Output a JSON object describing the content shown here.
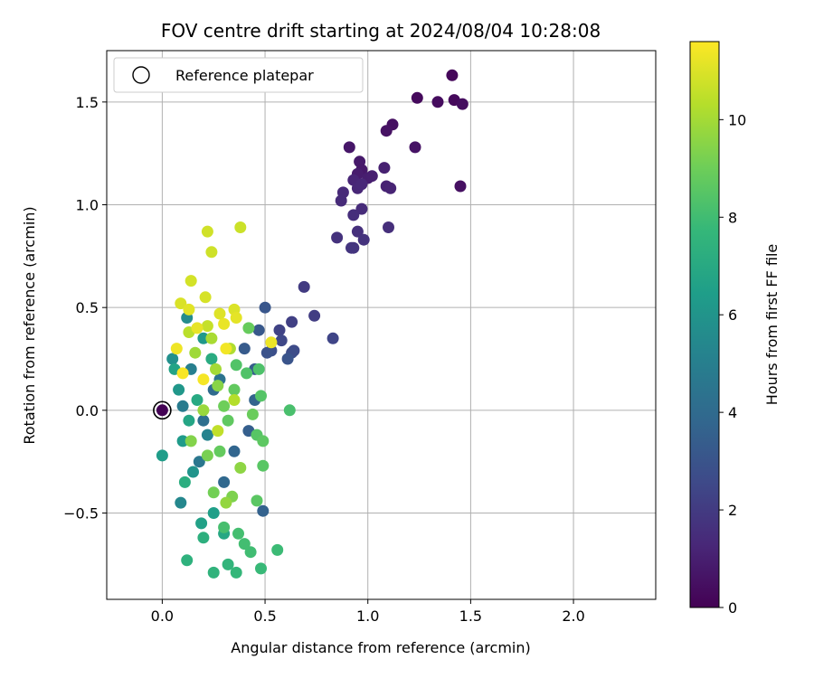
{
  "chart_data": {
    "type": "scatter",
    "title": "FOV centre drift starting at 2024/08/04 10:28:08",
    "xlabel": "Angular distance from reference (arcmin)",
    "ylabel": "Rotation from reference (arcmin)",
    "xlim": [
      -0.27,
      2.4
    ],
    "ylim": [
      -0.92,
      1.75
    ],
    "xticks": [
      0.0,
      0.5,
      1.0,
      1.5,
      2.0
    ],
    "xtick_labels": [
      "0.0",
      "0.5",
      "1.0",
      "1.5",
      "2.0"
    ],
    "yticks": [
      -0.5,
      0.0,
      0.5,
      1.0,
      1.5
    ],
    "ytick_labels": [
      "−0.5",
      "0.0",
      "0.5",
      "1.0",
      "1.5"
    ],
    "grid": true,
    "legend": {
      "placement": "top-left",
      "entries": [
        "Reference platepar"
      ]
    },
    "colorbar": {
      "label": "Hours from first FF file",
      "colormap": "viridis",
      "range": [
        0,
        11.6
      ],
      "ticks": [
        0,
        2,
        4,
        6,
        8,
        10
      ],
      "tick_labels": [
        "0",
        "2",
        "4",
        "6",
        "8",
        "10"
      ],
      "colors": [
        "#440154",
        "#482878",
        "#3e4a89",
        "#31688e",
        "#26828e",
        "#1f9e89",
        "#35b779",
        "#6ece58",
        "#b5de2b",
        "#fde725"
      ]
    },
    "reference": {
      "x": 0.0,
      "y": 0.0
    },
    "series": [
      {
        "points": [
          [
            0.0,
            0.0,
            0.05
          ],
          [
            1.41,
            1.63,
            0.2
          ],
          [
            1.24,
            1.52,
            0.3
          ],
          [
            1.34,
            1.5,
            0.35
          ],
          [
            1.42,
            1.51,
            0.25
          ],
          [
            1.46,
            1.49,
            0.4
          ],
          [
            1.45,
            1.09,
            0.5
          ],
          [
            1.12,
            1.39,
            0.45
          ],
          [
            1.09,
            1.36,
            0.55
          ],
          [
            1.23,
            1.28,
            0.6
          ],
          [
            0.91,
            1.28,
            0.7
          ],
          [
            0.96,
            1.21,
            0.8
          ],
          [
            0.97,
            1.17,
            0.75
          ],
          [
            0.95,
            1.15,
            0.9
          ],
          [
            1.0,
            1.13,
            0.95
          ],
          [
            1.02,
            1.14,
            1.0
          ],
          [
            1.08,
            1.18,
            1.05
          ],
          [
            1.09,
            1.09,
            1.1
          ],
          [
            1.11,
            1.08,
            1.15
          ],
          [
            0.93,
            1.12,
            1.2
          ],
          [
            0.95,
            1.08,
            1.25
          ],
          [
            0.97,
            1.1,
            1.3
          ],
          [
            0.88,
            1.06,
            1.35
          ],
          [
            0.87,
            1.02,
            1.4
          ],
          [
            0.97,
            0.98,
            1.45
          ],
          [
            0.93,
            0.95,
            1.5
          ],
          [
            1.1,
            0.89,
            1.55
          ],
          [
            0.95,
            0.87,
            1.6
          ],
          [
            0.85,
            0.84,
            1.65
          ],
          [
            0.98,
            0.83,
            1.7
          ],
          [
            0.93,
            0.79,
            1.75
          ],
          [
            0.92,
            0.79,
            1.8
          ],
          [
            0.69,
            0.6,
            2.0
          ],
          [
            0.74,
            0.46,
            2.1
          ],
          [
            0.63,
            0.43,
            2.2
          ],
          [
            0.57,
            0.39,
            2.3
          ],
          [
            0.83,
            0.35,
            2.4
          ],
          [
            0.58,
            0.34,
            2.5
          ],
          [
            0.64,
            0.29,
            2.6
          ],
          [
            0.63,
            0.28,
            2.7
          ],
          [
            0.53,
            0.29,
            2.8
          ],
          [
            0.51,
            0.28,
            2.9
          ],
          [
            0.61,
            0.25,
            3.0
          ],
          [
            0.5,
            0.5,
            3.1
          ],
          [
            0.47,
            0.39,
            3.2
          ],
          [
            0.4,
            0.3,
            3.3
          ],
          [
            0.45,
            0.2,
            3.4
          ],
          [
            0.42,
            -0.1,
            3.5
          ],
          [
            0.49,
            -0.49,
            3.6
          ],
          [
            0.45,
            0.05,
            3.7
          ],
          [
            0.35,
            -0.2,
            3.8
          ],
          [
            0.3,
            -0.35,
            3.9
          ],
          [
            0.25,
            0.1,
            4.0
          ],
          [
            0.2,
            -0.05,
            4.2
          ],
          [
            0.28,
            0.15,
            4.4
          ],
          [
            0.18,
            -0.25,
            4.6
          ],
          [
            0.1,
            0.02,
            4.8
          ],
          [
            0.14,
            0.2,
            5.0
          ],
          [
            0.22,
            -0.12,
            5.2
          ],
          [
            0.09,
            -0.45,
            5.4
          ],
          [
            0.12,
            0.45,
            5.6
          ],
          [
            0.05,
            0.25,
            5.8
          ],
          [
            0.15,
            -0.3,
            6.0
          ],
          [
            0.08,
            0.1,
            6.1
          ],
          [
            0.2,
            0.35,
            6.2
          ],
          [
            0.1,
            -0.15,
            6.3
          ],
          [
            0.0,
            -0.22,
            6.4
          ],
          [
            0.25,
            -0.5,
            6.5
          ],
          [
            0.19,
            -0.55,
            6.6
          ],
          [
            0.06,
            0.2,
            6.7
          ],
          [
            0.13,
            -0.05,
            6.8
          ],
          [
            0.3,
            -0.6,
            6.9
          ],
          [
            0.17,
            0.05,
            7.0
          ],
          [
            0.24,
            0.25,
            7.1
          ],
          [
            0.11,
            -0.35,
            7.2
          ],
          [
            0.2,
            -0.62,
            7.3
          ],
          [
            0.12,
            -0.73,
            7.4
          ],
          [
            0.25,
            -0.79,
            7.5
          ],
          [
            0.32,
            -0.75,
            7.6
          ],
          [
            0.36,
            -0.79,
            7.7
          ],
          [
            0.48,
            -0.77,
            7.8
          ],
          [
            0.56,
            -0.68,
            7.9
          ],
          [
            0.43,
            -0.69,
            8.0
          ],
          [
            0.4,
            -0.65,
            8.05
          ],
          [
            0.37,
            -0.6,
            8.1
          ],
          [
            0.3,
            -0.57,
            8.15
          ],
          [
            0.62,
            0.0,
            8.2
          ],
          [
            0.47,
            0.2,
            8.3
          ],
          [
            0.41,
            0.18,
            8.35
          ],
          [
            0.36,
            0.22,
            8.4
          ],
          [
            0.48,
            0.07,
            8.45
          ],
          [
            0.46,
            -0.12,
            8.5
          ],
          [
            0.49,
            -0.27,
            8.55
          ],
          [
            0.46,
            -0.44,
            8.6
          ],
          [
            0.49,
            -0.15,
            8.65
          ],
          [
            0.32,
            -0.05,
            8.7
          ],
          [
            0.35,
            0.1,
            8.75
          ],
          [
            0.28,
            -0.2,
            8.8
          ],
          [
            0.42,
            0.4,
            8.85
          ],
          [
            0.44,
            -0.02,
            8.9
          ],
          [
            0.3,
            0.02,
            9.0
          ],
          [
            0.25,
            -0.4,
            9.1
          ],
          [
            0.22,
            -0.22,
            9.2
          ],
          [
            0.34,
            -0.42,
            9.3
          ],
          [
            0.14,
            -0.15,
            9.4
          ],
          [
            0.27,
            0.12,
            9.5
          ],
          [
            0.38,
            -0.28,
            9.6
          ],
          [
            0.31,
            -0.45,
            9.7
          ],
          [
            0.2,
            0.0,
            9.8
          ],
          [
            0.16,
            0.28,
            9.9
          ],
          [
            0.26,
            0.2,
            10.0
          ],
          [
            0.24,
            0.35,
            10.1
          ],
          [
            0.33,
            0.3,
            10.2
          ],
          [
            0.35,
            0.05,
            10.3
          ],
          [
            0.13,
            0.38,
            10.4
          ],
          [
            0.27,
            -0.1,
            10.5
          ],
          [
            0.22,
            0.41,
            10.6
          ],
          [
            0.38,
            0.89,
            10.7
          ],
          [
            0.24,
            0.77,
            10.75
          ],
          [
            0.22,
            0.87,
            10.8
          ],
          [
            0.14,
            0.63,
            10.85
          ],
          [
            0.21,
            0.55,
            10.9
          ],
          [
            0.09,
            0.52,
            10.95
          ],
          [
            0.35,
            0.49,
            11.0
          ],
          [
            0.28,
            0.47,
            11.05
          ],
          [
            0.13,
            0.49,
            11.1
          ],
          [
            0.36,
            0.45,
            11.15
          ],
          [
            0.17,
            0.4,
            11.2
          ],
          [
            0.3,
            0.42,
            11.25
          ],
          [
            0.53,
            0.33,
            11.3
          ],
          [
            0.07,
            0.3,
            11.35
          ],
          [
            0.31,
            0.3,
            11.4
          ],
          [
            0.2,
            0.15,
            11.45
          ],
          [
            0.1,
            0.18,
            11.5
          ]
        ]
      }
    ]
  }
}
